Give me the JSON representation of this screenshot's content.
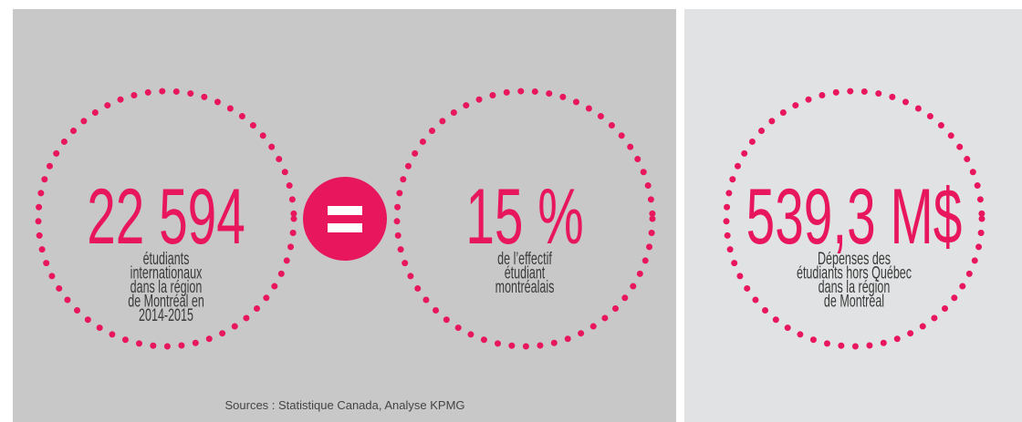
{
  "stats": [
    {
      "value": "22 594",
      "lines": [
        "étudiants",
        "internationaux",
        "dans la région",
        "de Montréal en",
        "2014-2015"
      ]
    },
    {
      "value": "15 %",
      "lines": [
        "de l’effectif",
        "étudiant",
        "montréalais"
      ]
    },
    {
      "value": "539,3 M$",
      "lines": [
        "Dépenses des",
        "étudiants hors Québec",
        "dans la région",
        "de Montréal"
      ]
    }
  ],
  "source": "Sources :  Statistique Canada, Analyse KPMG"
}
